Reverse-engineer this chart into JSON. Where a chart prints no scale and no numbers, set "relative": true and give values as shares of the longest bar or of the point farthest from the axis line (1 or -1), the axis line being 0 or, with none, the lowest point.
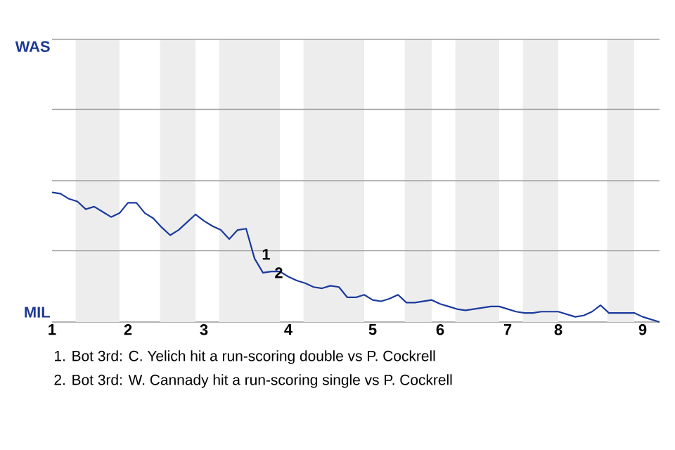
{
  "chart_data": {
    "type": "line",
    "relative": true,
    "categories": [
      "1",
      null,
      null,
      null,
      null,
      null,
      null,
      null,
      null,
      "2",
      null,
      null,
      null,
      null,
      null,
      null,
      null,
      null,
      "3",
      null,
      null,
      null,
      null,
      null,
      null,
      null,
      null,
      null,
      "4",
      null,
      null,
      null,
      null,
      null,
      null,
      null,
      null,
      null,
      "5",
      null,
      null,
      null,
      null,
      null,
      null,
      null,
      "6",
      null,
      null,
      null,
      null,
      null,
      null,
      null,
      "7",
      null,
      null,
      null,
      null,
      null,
      "8",
      null,
      null,
      null,
      null,
      null,
      null,
      null,
      null,
      null,
      "9",
      null,
      null
    ],
    "series": [
      {
        "color": "#1a3a9c",
        "values": [
          1.0,
          0.99,
          0.95,
          0.93,
          0.87,
          0.89,
          0.85,
          0.81,
          0.84,
          0.92,
          0.92,
          0.84,
          0.8,
          0.73,
          0.67,
          0.71,
          0.77,
          0.83,
          0.78,
          0.74,
          0.71,
          0.64,
          0.71,
          0.72,
          0.49,
          0.38,
          0.39,
          0.39,
          0.35,
          0.32,
          0.3,
          0.27,
          0.26,
          0.28,
          0.27,
          0.19,
          0.19,
          0.21,
          0.17,
          0.16,
          0.18,
          0.21,
          0.15,
          0.15,
          0.16,
          0.17,
          0.14,
          0.12,
          0.1,
          0.09,
          0.1,
          0.11,
          0.12,
          0.12,
          0.1,
          0.08,
          0.07,
          0.07,
          0.08,
          0.08,
          0.08,
          0.06,
          0.04,
          0.05,
          0.08,
          0.13,
          0.07,
          0.07,
          0.07,
          0.07,
          0.04,
          0.02,
          0
        ]
      }
    ],
    "marker": "none",
    "line_style": "solid",
    "ref_lines": [
      {
        "axis": "y",
        "value": 0.55,
        "color": "#9f9f9f"
      },
      {
        "axis": "y",
        "value": 1.09,
        "color": "#9f9f9f"
      },
      {
        "axis": "y",
        "value": 1.64,
        "color": "#9f9f9f"
      },
      {
        "axis": "y",
        "value": 2.18,
        "color": "#9f9f9f"
      }
    ],
    "annotations": [
      "WAS",
      "MIL",
      "1",
      "2",
      "1. Bot 3rd: C. Yelich hit a run-scoring double vs P. Cockrell",
      "2. Bot 3rd: W. Cannady hit a run-scoring single vs P. Cockrell"
    ]
  }
}
